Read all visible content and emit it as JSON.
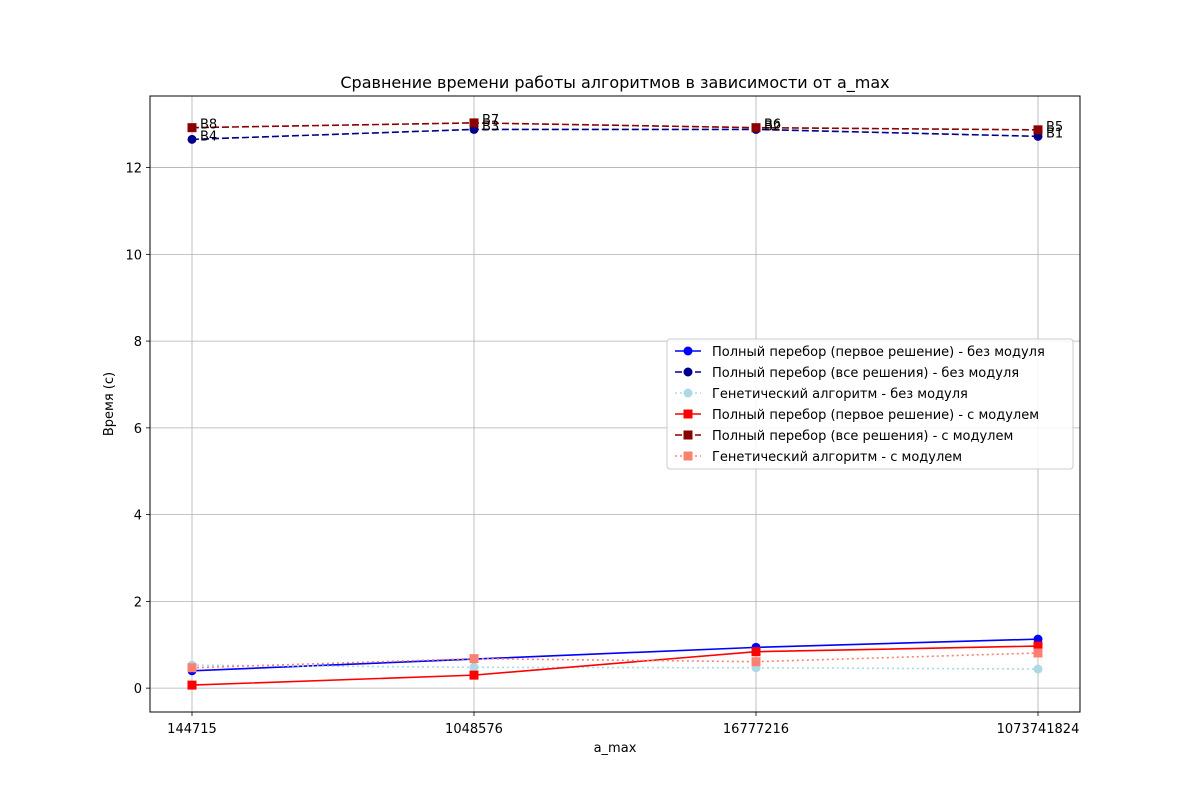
{
  "chart_data": {
    "type": "line",
    "title": "Сравнение времени работы алгоритмов в зависимости от a_max",
    "xlabel": "a_max",
    "ylabel": "Время (с)",
    "categories": [
      "144715",
      "1048576",
      "16777216",
      "1073741824"
    ],
    "ylim": [
      -0.55,
      13.65
    ],
    "yticks": [
      0,
      2,
      4,
      6,
      8,
      10,
      12
    ],
    "grid": true,
    "legend_position": "center-right",
    "series": [
      {
        "name": "Полный перебор (первое решение) - без модуля",
        "values": [
          0.4,
          0.67,
          0.94,
          1.13
        ],
        "color": "#0000ff",
        "dash": "solid",
        "marker": "circle"
      },
      {
        "name": "Полный перебор (все решения) - без модуля",
        "values": [
          12.65,
          12.88,
          12.88,
          12.72
        ],
        "color": "#00008b",
        "dash": "dashed",
        "marker": "circle"
      },
      {
        "name": "Генетический алгоритм - без модуля",
        "values": [
          0.53,
          0.48,
          0.47,
          0.44
        ],
        "color": "#add8e6",
        "dash": "dotted",
        "marker": "circle"
      },
      {
        "name": "Полный перебор (первое решение) - с модулем",
        "values": [
          0.07,
          0.3,
          0.84,
          0.97
        ],
        "color": "#ff0000",
        "dash": "solid",
        "marker": "square"
      },
      {
        "name": "Полный перебор (все решения) - с модулем",
        "values": [
          12.92,
          13.03,
          12.92,
          12.87
        ],
        "color": "#8b0000",
        "dash": "dashed",
        "marker": "square"
      },
      {
        "name": "Генетический алгоритм - с модулем",
        "values": [
          0.47,
          0.68,
          0.61,
          0.81
        ],
        "color": "#fa8072",
        "dash": "dotted",
        "marker": "square"
      }
    ],
    "annotations": [
      {
        "text": "B8",
        "x_index": 0,
        "y": 12.92
      },
      {
        "text": "B4",
        "x_index": 0,
        "y": 12.65
      },
      {
        "text": "B7",
        "x_index": 1,
        "y": 13.03
      },
      {
        "text": "B3",
        "x_index": 1,
        "y": 12.88
      },
      {
        "text": "B6",
        "x_index": 2,
        "y": 12.92
      },
      {
        "text": "B2",
        "x_index": 2,
        "y": 12.88
      },
      {
        "text": "B5",
        "x_index": 3,
        "y": 12.87
      },
      {
        "text": "B1",
        "x_index": 3,
        "y": 12.72
      }
    ]
  }
}
